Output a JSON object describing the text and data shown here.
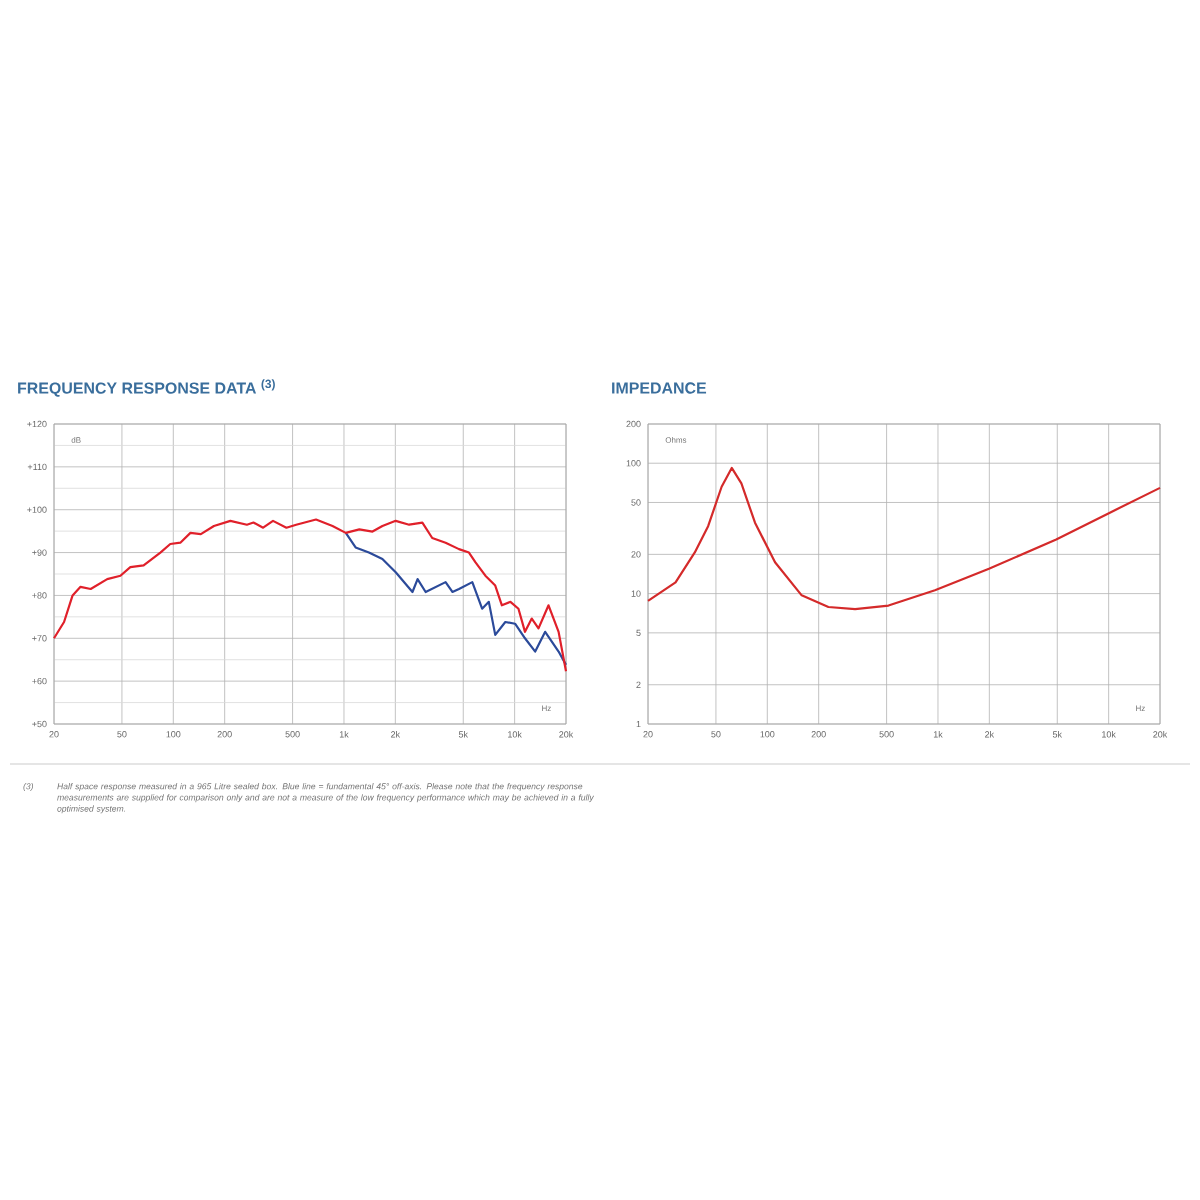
{
  "chart_data": [
    {
      "type": "line",
      "title": "FREQUENCY RESPONSE DATA $^{(3)}$",
      "ylabel": "dB",
      "xlabel": "Hz",
      "log": "x",
      "grid": true,
      "xlim": [
        20,
        20000
      ],
      "xticks": [
        20,
        50,
        100,
        200,
        500,
        {
          "value": 1000,
          "label": "1k"
        },
        {
          "value": 2000,
          "label": "2k"
        },
        {
          "value": 5000,
          "label": "5k"
        },
        {
          "value": 10000,
          "label": "10k"
        },
        {
          "value": 20000,
          "label": "20k"
        }
      ],
      "ylim": [
        50,
        120
      ],
      "yticks": [
        {
          "value": 50,
          "label": "+50"
        },
        {
          "value": 60,
          "label": "+60"
        },
        {
          "value": 70,
          "label": "+70"
        },
        {
          "value": 80,
          "label": "+80"
        },
        {
          "value": 90,
          "label": "+90"
        },
        {
          "value": 100,
          "label": "+100"
        },
        {
          "value": 110,
          "label": "+110"
        },
        {
          "value": 120,
          "label": "+120"
        }
      ],
      "series": [
        {
          "color": "#2b4a9a",
          "x": [
            1025,
            1170,
            1400,
            1680,
            2010,
            2520,
            2700,
            3010,
            3940,
            4320,
            4720,
            5650,
            6450,
            7060,
            7700,
            8820,
            10060,
            11500,
            13200,
            15100,
            18100,
            20000
          ],
          "values": [
            94.6,
            91.2,
            90,
            88.5,
            85.4,
            80.8,
            83.8,
            80.8,
            83.1,
            80.8,
            81.5,
            83.1,
            76.9,
            78.5,
            70.8,
            73.8,
            73.4,
            70,
            66.9,
            71.5,
            66.9,
            63.8
          ]
        },
        {
          "color": "#e0202a",
          "x": [
            20,
            22.9,
            25.7,
            28.6,
            32.8,
            41,
            49,
            56,
            67,
            84,
            96,
            110,
            126,
            145,
            173,
            216,
            270,
            295,
            336,
            384,
            460,
            525,
            686,
            857,
            1025,
            1230,
            1470,
            1680,
            2010,
            2410,
            2880,
            3290,
            3940,
            4720,
            5400,
            5900,
            6740,
            7700,
            8420,
            9450,
            10530,
            11500,
            12600,
            13800,
            15800,
            18100,
            20000
          ],
          "values": [
            70,
            73.8,
            80,
            82,
            81.5,
            83.8,
            84.6,
            86.6,
            87,
            90,
            92,
            92.3,
            94.6,
            94.3,
            96.2,
            97.4,
            96.5,
            97,
            95.8,
            97.4,
            95.8,
            96.5,
            97.7,
            96.2,
            94.6,
            95.4,
            94.9,
            96.2,
            97.4,
            96.5,
            97,
            93.4,
            92.3,
            90.8,
            90,
            87.7,
            84.6,
            82.3,
            77.7,
            78.5,
            76.9,
            71.5,
            74.6,
            72.3,
            77.7,
            71.5,
            62.3
          ]
        }
      ],
      "annotations": [
        "(3)",
        "Half space response measured in a 965 Litre sealed box. Blue line = fundamental 45° off-axis. Please note that the frequency response measurements are supplied for comparison only and are not a measure of the low frequency performance which may be achieved in a fully optimised system."
      ]
    },
    {
      "type": "line",
      "title": "IMPEDANCE",
      "ylabel": "Ohms",
      "xlabel": "Hz",
      "log": "xy",
      "grid": true,
      "xlim": [
        20,
        20000
      ],
      "xticks": [
        20,
        50,
        100,
        200,
        500,
        {
          "value": 1000,
          "label": "1k"
        },
        {
          "value": 2000,
          "label": "2k"
        },
        {
          "value": 5000,
          "label": "5k"
        },
        {
          "value": 10000,
          "label": "10k"
        },
        {
          "value": 20000,
          "label": "20k"
        }
      ],
      "ylim": [
        1,
        200
      ],
      "yticks": [
        1,
        2,
        5,
        10,
        20,
        50,
        100,
        200
      ],
      "series": [
        {
          "color": "#d42a2a",
          "x": [
            20,
            29,
            37.6,
            45,
            54,
            61.9,
            70.5,
            84.7,
            111,
            159,
            228,
            327,
            513,
            960,
            1990,
            4930,
            10100,
            20000
          ],
          "values": [
            8.8,
            12.2,
            20.7,
            32.9,
            66,
            92,
            70,
            35,
            17.4,
            9.7,
            7.9,
            7.6,
            8.1,
            10.6,
            15.5,
            26,
            41.6,
            64.7
          ]
        }
      ]
    }
  ]
}
